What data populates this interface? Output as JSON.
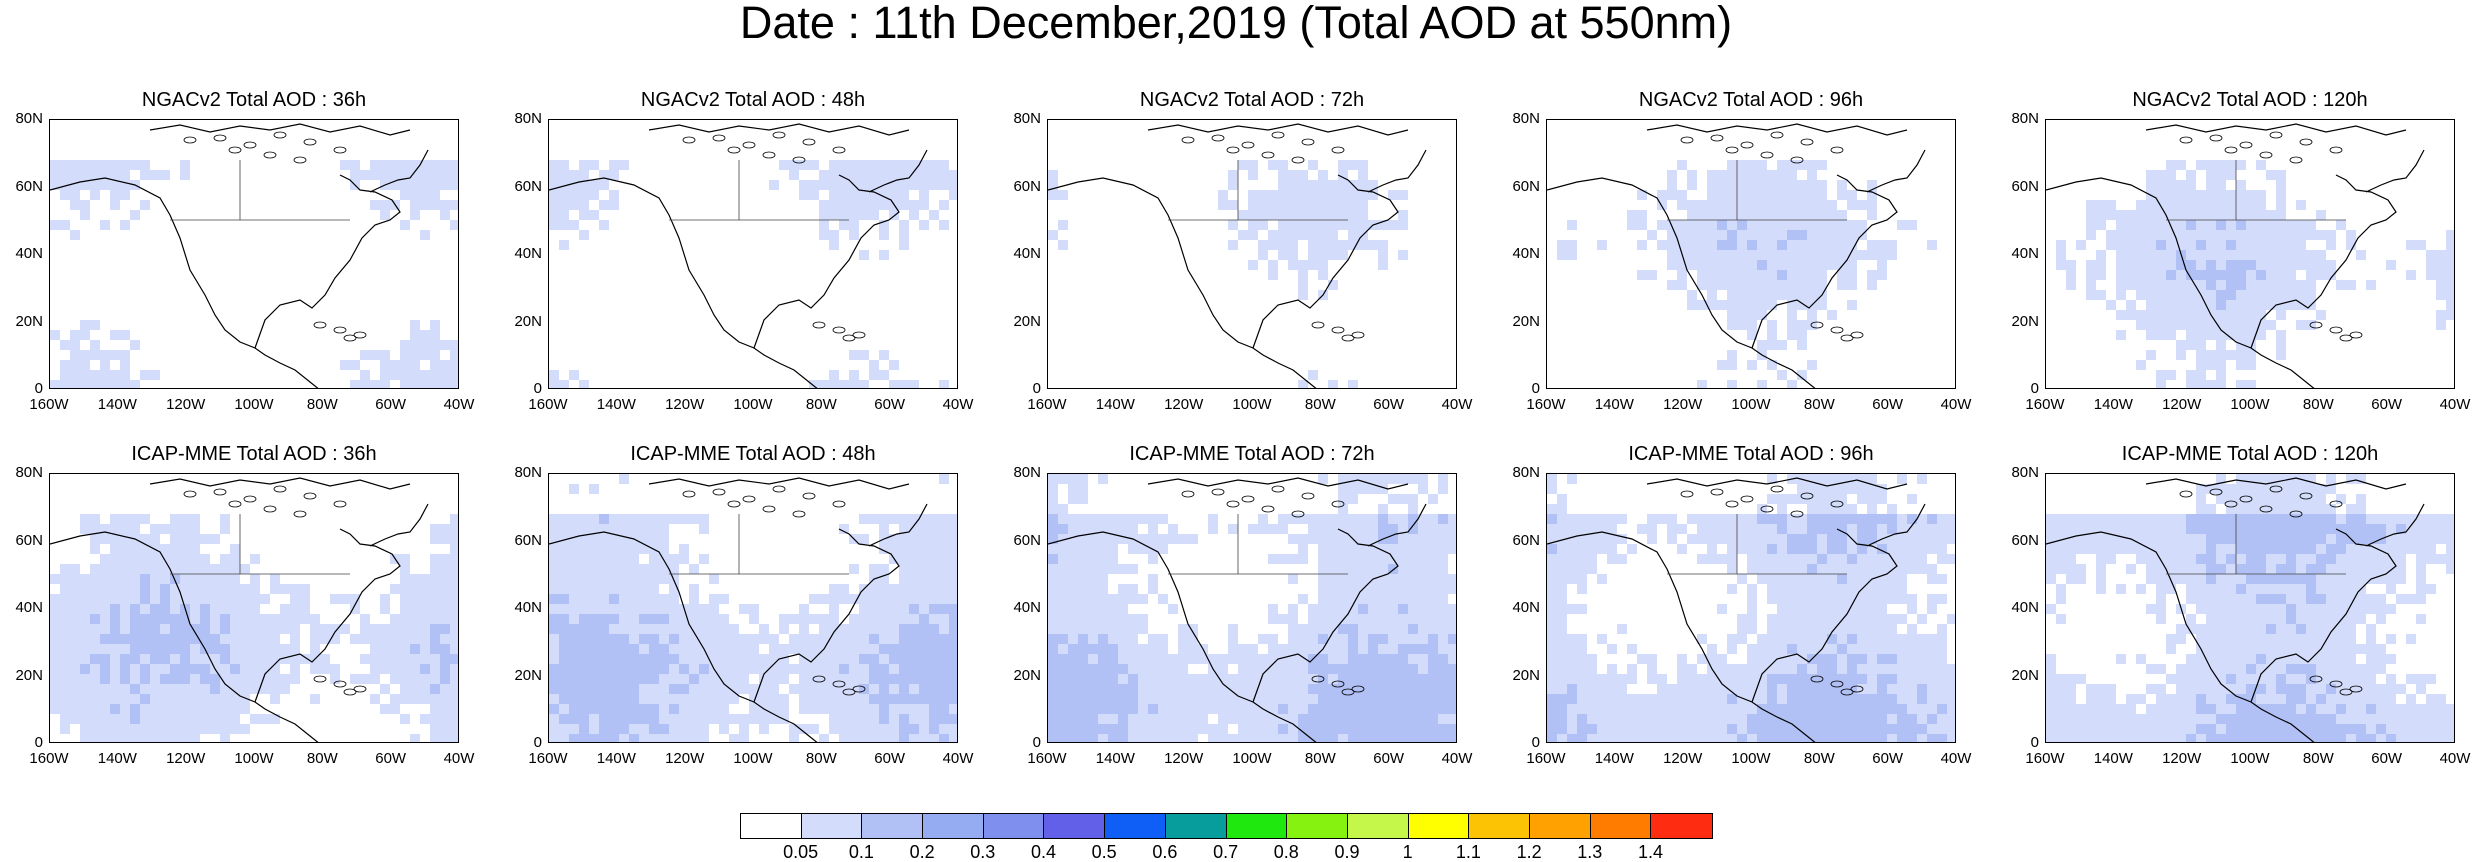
{
  "title": "Date : 11th December,2019 (Total AOD at 550nm)",
  "lat_labels": [
    "80N",
    "60N",
    "40N",
    "20N",
    "0"
  ],
  "lon_labels": [
    "160W",
    "140W",
    "120W",
    "100W",
    "80W",
    "60W",
    "40W"
  ],
  "panels": [
    {
      "title": "NGACv2 Total AOD : 36h",
      "model": "NGACv2",
      "lead": "36h",
      "level": 1
    },
    {
      "title": "NGACv2 Total AOD : 48h",
      "model": "NGACv2",
      "lead": "48h",
      "level": 1
    },
    {
      "title": "NGACv2 Total AOD : 72h",
      "model": "NGACv2",
      "lead": "72h",
      "level": 1
    },
    {
      "title": "NGACv2 Total AOD : 96h",
      "model": "NGACv2",
      "lead": "96h",
      "level": 1.4
    },
    {
      "title": "NGACv2 Total AOD : 120h",
      "model": "NGACv2",
      "lead": "120h",
      "level": 1.5
    },
    {
      "title": "ICAP-MME Total AOD : 36h",
      "model": "ICAP-MME",
      "lead": "36h",
      "level": 1.8
    },
    {
      "title": "ICAP-MME Total AOD : 48h",
      "model": "ICAP-MME",
      "lead": "48h",
      "level": 2
    },
    {
      "title": "ICAP-MME Total AOD : 72h",
      "model": "ICAP-MME",
      "lead": "72h",
      "level": 2.1
    },
    {
      "title": "ICAP-MME Total AOD : 96h",
      "model": "ICAP-MME",
      "lead": "96h",
      "level": 2.1
    },
    {
      "title": "ICAP-MME Total AOD : 120h",
      "model": "ICAP-MME",
      "lead": "120h",
      "level": 2.2
    }
  ],
  "colorbar": {
    "labels": [
      "0.05",
      "0.1",
      "0.2",
      "0.3",
      "0.4",
      "0.5",
      "0.6",
      "0.7",
      "0.8",
      "0.9",
      "1",
      "1.1",
      "1.2",
      "1.3",
      "1.4"
    ],
    "colors": [
      "#ffffff",
      "#d3dcfa",
      "#b2c1f5",
      "#96acf2",
      "#7e8fee",
      "#6260e8",
      "#0f5ef5",
      "#079d9c",
      "#1fe80f",
      "#86f20f",
      "#c4f74a",
      "#ffff00",
      "#fcc305",
      "#ffa100",
      "#ff7c00",
      "#fe2c10"
    ]
  }
}
